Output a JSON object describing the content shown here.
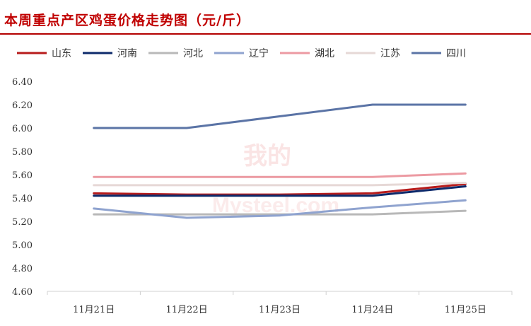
{
  "header": {
    "title": "本周重点产区鸡蛋价格走势图（元/斤）"
  },
  "watermark": {
    "brand": "我的",
    "site": "Mysteel.com",
    "color": "#e25a5a"
  },
  "chart_data": {
    "type": "line",
    "title": "本周重点产区鸡蛋价格走势图（元/斤）",
    "xlabel": "",
    "ylabel": "",
    "categories": [
      "11月21日",
      "11月22日",
      "11月23日",
      "11月24日",
      "11月25日"
    ],
    "ylim": [
      4.6,
      6.4
    ],
    "yticks": [
      "4.60",
      "4.80",
      "5.00",
      "5.20",
      "5.40",
      "5.60",
      "5.80",
      "6.00",
      "6.20",
      "6.40"
    ],
    "grid": false,
    "legend_position": "top",
    "series": [
      {
        "name": "山东",
        "color": "#b71c1c",
        "values": [
          5.44,
          5.43,
          5.43,
          5.44,
          5.52
        ]
      },
      {
        "name": "河南",
        "color": "#0d2a6b",
        "values": [
          5.42,
          5.42,
          5.42,
          5.42,
          5.5
        ]
      },
      {
        "name": "河北",
        "color": "#b8b8b8",
        "values": [
          5.26,
          5.26,
          5.26,
          5.26,
          5.29
        ]
      },
      {
        "name": "辽宁",
        "color": "#8fa3cf",
        "values": [
          5.31,
          5.23,
          5.25,
          5.32,
          5.38
        ]
      },
      {
        "name": "湖北",
        "color": "#ec9aa2",
        "values": [
          5.58,
          5.58,
          5.58,
          5.58,
          5.61
        ]
      },
      {
        "name": "江苏",
        "color": "#e6d8d6",
        "values": [
          5.51,
          5.51,
          5.51,
          5.51,
          5.53
        ]
      },
      {
        "name": "四川",
        "color": "#5b74a6",
        "values": [
          6.0,
          6.0,
          6.1,
          6.2,
          6.2
        ]
      }
    ]
  }
}
